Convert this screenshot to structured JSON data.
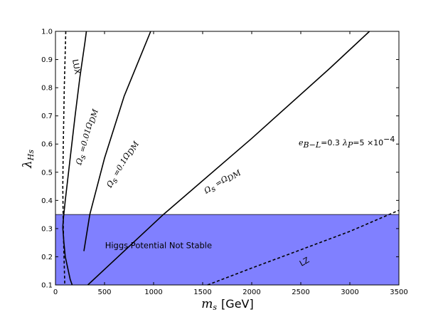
{
  "chart_data": {
    "type": "line",
    "xlim": [
      0,
      3500
    ],
    "ylim": [
      0.1,
      1.0
    ],
    "xticks": [
      0,
      500,
      1000,
      1500,
      2000,
      2500,
      3000,
      3500
    ],
    "yticks": [
      0.1,
      0.2,
      0.3,
      0.4,
      0.5,
      0.6,
      0.7,
      0.8,
      0.9,
      1.0
    ],
    "xtick_labels": [
      "0",
      "500",
      "1000",
      "1500",
      "2000",
      "2500",
      "3000",
      "3500"
    ],
    "ytick_labels": [
      "0.1",
      "0.2",
      "0.3",
      "0.4",
      "0.5",
      "0.6",
      "0.7",
      "0.8",
      "0.9",
      "1.0"
    ],
    "xlabel": {
      "symbol": "m",
      "sub": "s",
      "unit": "[GeV]"
    },
    "ylabel": {
      "symbol": "λ",
      "sub": "Hs"
    },
    "grid": false,
    "shaded_region": {
      "label": "Higgs Potential Not Stable",
      "y_range": [
        0.1,
        0.35
      ],
      "color": "#8080ff"
    },
    "parameters_note": {
      "e_sym": "e",
      "e_sub": "B−L",
      "e_val": "=0.3",
      "l_sym": "λ",
      "l_sub": "P",
      "l_val": "=5 ×10",
      "l_exp": "−4"
    },
    "series": [
      {
        "label": {
          "sym": "Ω",
          "sub": "s",
          "mid": " =0.01Ω",
          "sub2": "DM"
        },
        "style": "solid",
        "points": [
          [
            75,
            0.305
          ],
          [
            82,
            0.34
          ],
          [
            100,
            0.4
          ],
          [
            150,
            0.55
          ],
          [
            200,
            0.7
          ],
          [
            250,
            0.84
          ],
          [
            300,
            0.96
          ],
          [
            315,
            1.0
          ]
        ]
      },
      {
        "label": {
          "sym": "Ω",
          "sub": "s",
          "mid": " =0.1Ω",
          "sub2": "DM"
        },
        "style": "solid",
        "points": [
          [
            75,
            0.305
          ],
          [
            85,
            0.255
          ],
          [
            100,
            0.2
          ],
          [
            150,
            0.12
          ],
          [
            170,
            0.1
          ]
        ],
        "points2": [
          [
            290,
            0.22
          ],
          [
            350,
            0.35
          ],
          [
            500,
            0.55
          ],
          [
            700,
            0.77
          ],
          [
            900,
            0.94
          ],
          [
            970,
            1.0
          ]
        ]
      },
      {
        "label": {
          "sym": "Ω",
          "sub": "s",
          "mid": " =Ω",
          "sub2": "DM"
        },
        "style": "solid",
        "points": [
          [
            330,
            0.1
          ],
          [
            1100,
            0.35
          ],
          [
            2000,
            0.62
          ],
          [
            2800,
            0.87
          ],
          [
            3200,
            1.0
          ]
        ]
      },
      {
        "label": {
          "text": "LUX"
        },
        "style": "dashed",
        "points": [
          [
            105,
            1.0
          ],
          [
            90,
            0.8
          ],
          [
            80,
            0.6
          ],
          [
            75,
            0.45
          ],
          [
            80,
            0.3
          ],
          [
            95,
            0.1
          ]
        ]
      },
      {
        "label": {
          "text": "LZ"
        },
        "style": "dashed",
        "points": [
          [
            1550,
            0.1
          ],
          [
            2000,
            0.16
          ],
          [
            2500,
            0.225
          ],
          [
            3000,
            0.29
          ],
          [
            3500,
            0.365
          ]
        ]
      }
    ]
  }
}
